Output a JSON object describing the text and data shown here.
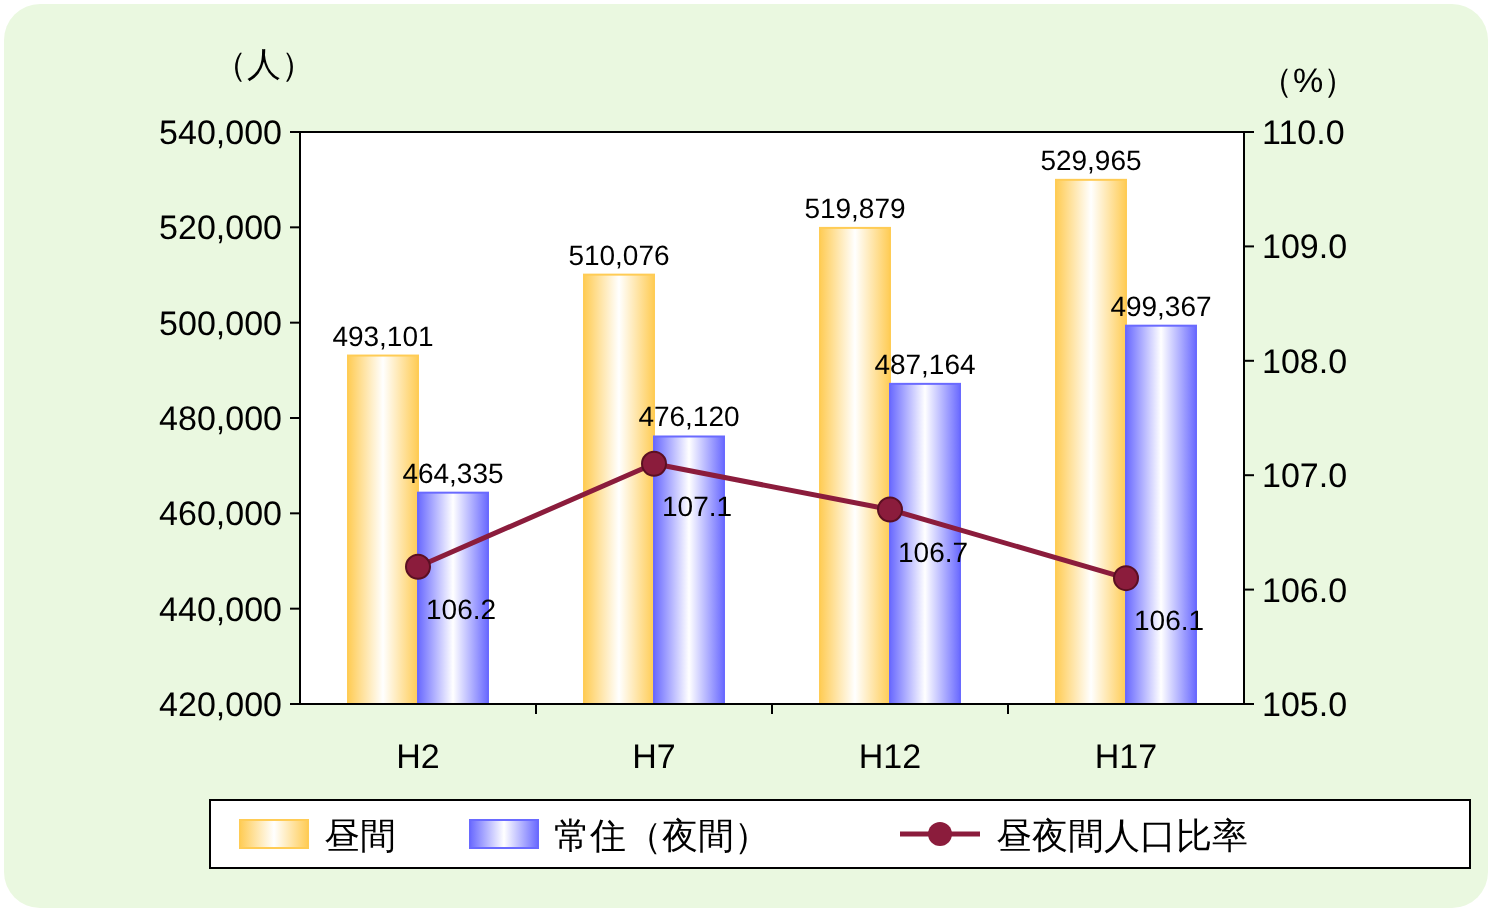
{
  "chart_data": {
    "type": "bar",
    "ylabel": "（人）",
    "y2label": "（%）",
    "categories": [
      "H2",
      "H7",
      "H12",
      "H17"
    ],
    "series": [
      {
        "name": "昼間",
        "color": "#ffcc55",
        "values": [
          493101,
          510076,
          519879,
          529965
        ],
        "value_labels": [
          "493,101",
          "510,076",
          "519,879",
          "529,965"
        ]
      },
      {
        "name": "常住（夜間）",
        "color": "#6a6aff",
        "values": [
          464335,
          476120,
          487164,
          499367
        ],
        "value_labels": [
          "464,335",
          "476,120",
          "487,164",
          "499,367"
        ]
      },
      {
        "name": "昼夜間人口比率",
        "type": "line",
        "axis": "y2",
        "color": "#8b1c3c",
        "marker": "circle",
        "line_style": "solid",
        "values": [
          106.2,
          107.1,
          106.7,
          106.1
        ],
        "value_labels": [
          "106.2",
          "107.1",
          "106.7",
          "106.1"
        ]
      }
    ],
    "ylim": [
      420000,
      540000
    ],
    "yticks": [
      {
        "value": 420000,
        "label": "420,000"
      },
      {
        "value": 440000,
        "label": "440,000"
      },
      {
        "value": 460000,
        "label": "460,000"
      },
      {
        "value": 480000,
        "label": "480,000"
      },
      {
        "value": 500000,
        "label": "500,000"
      },
      {
        "value": 520000,
        "label": "520,000"
      },
      {
        "value": 540000,
        "label": "540,000"
      }
    ],
    "y2lim": [
      105,
      110
    ],
    "y2ticks": [
      {
        "value": 105,
        "label": "105.0"
      },
      {
        "value": 106,
        "label": "106.0"
      },
      {
        "value": 107,
        "label": "107.0"
      },
      {
        "value": 108,
        "label": "108.0"
      },
      {
        "value": 109,
        "label": "109.0"
      },
      {
        "value": 110,
        "label": "110.0"
      }
    ],
    "legend": "bottom"
  }
}
